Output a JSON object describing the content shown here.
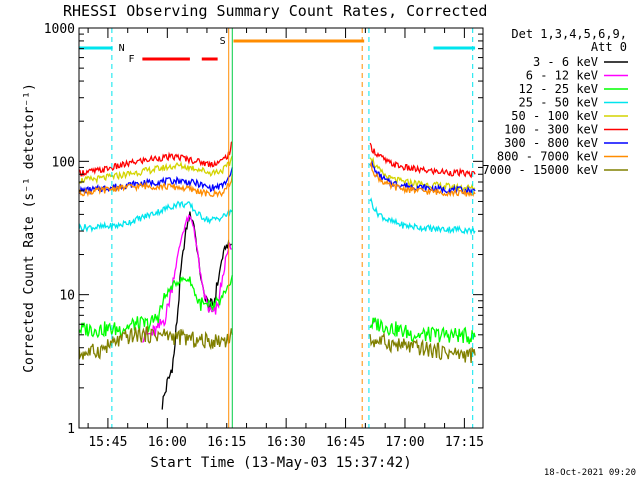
{
  "chart_data": {
    "type": "line",
    "title": "RHESSI Observing Summary Count Rates, Corrected",
    "xlabel": "Start Time (13-May-03 15:37:42)",
    "ylabel": "Corrected Count Rate (s⁻¹ detector⁻¹)",
    "x_unit": "minutes after 15:37:42 UT",
    "xlim": [
      0,
      102
    ],
    "ylim": [
      1,
      1000
    ],
    "y_scale": "log",
    "y_ticks": [
      1,
      10,
      100,
      1000
    ],
    "y_tick_labels": [
      "1",
      "10",
      "100",
      "1000"
    ],
    "x_ticks": [
      7.3,
      22.3,
      37.3,
      52.3,
      67.3,
      82.3,
      97.3
    ],
    "x_tick_labels": [
      "15:45",
      "16:00",
      "16:15",
      "16:30",
      "16:45",
      "17:00",
      "17:15"
    ],
    "legend": {
      "placement": "right",
      "header_line1": "Det 1,3,4,5,6,9,",
      "header_line2": "Att 0"
    },
    "footer_date": "18-Oct-2021 09:20",
    "flags": {
      "N_label": "N",
      "N_color": "#00e5ee",
      "N_segments": [
        [
          0,
          8.5
        ],
        [
          89.5,
          100
        ]
      ],
      "F_label": "F",
      "F_color": "#ff0000",
      "F_segments": [
        [
          16,
          28
        ],
        [
          31,
          35
        ]
      ],
      "S_label": "S",
      "S_color": "#ff8c00",
      "S_segments": [
        [
          39,
          72
        ]
      ]
    },
    "vlines": [
      {
        "x": 8.3,
        "color": "#00e5ee",
        "dashed": true
      },
      {
        "x": 37.8,
        "color": "#ff8c00",
        "dashed": false
      },
      {
        "x": 38.7,
        "color": "#00cc44",
        "dashed": false
      },
      {
        "x": 71.5,
        "color": "#ff8c00",
        "dashed": true
      },
      {
        "x": 73.2,
        "color": "#00e5ee",
        "dashed": true
      },
      {
        "x": 99.4,
        "color": "#00e5ee",
        "dashed": true
      }
    ],
    "series": [
      {
        "name": "3 - 6 keV",
        "color": "#000000",
        "segments": [
          [
            [
              21,
              1.5
            ],
            [
              22,
              2
            ],
            [
              23,
              2.5
            ],
            [
              24,
              3.5
            ],
            [
              25,
              8
            ],
            [
              26,
              18
            ],
            [
              27,
              30
            ],
            [
              28,
              40
            ],
            [
              29,
              34
            ],
            [
              30,
              20
            ],
            [
              31,
              12
            ],
            [
              32,
              9
            ],
            [
              33,
              8
            ],
            [
              34,
              8.5
            ],
            [
              35,
              12
            ],
            [
              36,
              18
            ],
            [
              37,
              23
            ],
            [
              38.5,
              24
            ]
          ]
        ]
      },
      {
        "name": "6 - 12 keV",
        "color": "#ff00ff",
        "segments": [
          [
            [
              16,
              5
            ],
            [
              18,
              5
            ],
            [
              20,
              5.5
            ],
            [
              22,
              7
            ],
            [
              24,
              14
            ],
            [
              26,
              28
            ],
            [
              27,
              35
            ],
            [
              28,
              38
            ],
            [
              29,
              32
            ],
            [
              30,
              20
            ],
            [
              31,
              12
            ],
            [
              32,
              9
            ],
            [
              33,
              7.5
            ],
            [
              34,
              7
            ],
            [
              35,
              8
            ],
            [
              36,
              12
            ],
            [
              37,
              18
            ],
            [
              38,
              23
            ],
            [
              38.6,
              22
            ]
          ],
          [
            [
              74,
              7
            ],
            [
              75,
              6.5
            ]
          ]
        ]
      },
      {
        "name": "12 - 25 keV",
        "color": "#00ff00",
        "segments": [
          [
            [
              0,
              5.5
            ],
            [
              5,
              5.5
            ],
            [
              10,
              5.5
            ],
            [
              14,
              6
            ],
            [
              18,
              6
            ],
            [
              20,
              7
            ],
            [
              22,
              10
            ],
            [
              24,
              12
            ],
            [
              26,
              13
            ],
            [
              28,
              13
            ],
            [
              30,
              9
            ],
            [
              32,
              8
            ],
            [
              34,
              8
            ],
            [
              36,
              9
            ],
            [
              37,
              10
            ],
            [
              38,
              12
            ],
            [
              38.7,
              14
            ]
          ],
          [
            [
              73.5,
              6
            ],
            [
              76,
              6
            ],
            [
              80,
              5.5
            ],
            [
              85,
              5
            ],
            [
              90,
              5
            ],
            [
              95,
              5
            ],
            [
              100,
              4.8
            ]
          ]
        ]
      },
      {
        "name": "25 - 50 keV",
        "color": "#00e5ee",
        "segments": [
          [
            [
              0,
              32
            ],
            [
              5,
              32
            ],
            [
              10,
              33
            ],
            [
              15,
              37
            ],
            [
              20,
              42
            ],
            [
              25,
              48
            ],
            [
              28,
              47
            ],
            [
              30,
              40
            ],
            [
              33,
              36
            ],
            [
              36,
              38
            ],
            [
              38,
              41
            ],
            [
              38.7,
              43
            ]
          ],
          [
            [
              73.5,
              52
            ],
            [
              75,
              42
            ],
            [
              78,
              36
            ],
            [
              82,
              33
            ],
            [
              86,
              32
            ],
            [
              90,
              31
            ],
            [
              95,
              31
            ],
            [
              100,
              30
            ]
          ]
        ]
      },
      {
        "name": "50 - 100 keV",
        "color": "#d4d400",
        "segments": [
          [
            [
              0,
              72
            ],
            [
              5,
              74
            ],
            [
              10,
              78
            ],
            [
              15,
              83
            ],
            [
              20,
              88
            ],
            [
              25,
              93
            ],
            [
              30,
              88
            ],
            [
              33,
              82
            ],
            [
              36,
              85
            ],
            [
              38,
              95
            ],
            [
              38.7,
              110
            ]
          ],
          [
            [
              73.5,
              112
            ],
            [
              75,
              90
            ],
            [
              78,
              75
            ],
            [
              82,
              70
            ],
            [
              86,
              68
            ],
            [
              90,
              66
            ],
            [
              95,
              64
            ],
            [
              100,
              63
            ]
          ]
        ]
      },
      {
        "name": "100 - 300 keV",
        "color": "#ff0000",
        "segments": [
          [
            [
              0,
              82
            ],
            [
              5,
              85
            ],
            [
              10,
              92
            ],
            [
              15,
              100
            ],
            [
              20,
              106
            ],
            [
              25,
              108
            ],
            [
              30,
              100
            ],
            [
              33,
              95
            ],
            [
              36,
              100
            ],
            [
              38,
              115
            ],
            [
              38.7,
              140
            ]
          ],
          [
            [
              73.5,
              130
            ],
            [
              75,
              115
            ],
            [
              78,
              98
            ],
            [
              82,
              90
            ],
            [
              86,
              86
            ],
            [
              90,
              84
            ],
            [
              95,
              82
            ],
            [
              100,
              80
            ]
          ]
        ]
      },
      {
        "name": "300 - 800 keV",
        "color": "#0000ff",
        "segments": [
          [
            [
              0,
              60
            ],
            [
              5,
              62
            ],
            [
              10,
              65
            ],
            [
              15,
              68
            ],
            [
              20,
              70
            ],
            [
              25,
              72
            ],
            [
              30,
              68
            ],
            [
              33,
              63
            ],
            [
              36,
              65
            ],
            [
              38,
              75
            ],
            [
              38.7,
              90
            ]
          ],
          [
            [
              73.5,
              100
            ],
            [
              75,
              82
            ],
            [
              78,
              70
            ],
            [
              82,
              66
            ],
            [
              86,
              64
            ],
            [
              90,
              62
            ],
            [
              95,
              61
            ],
            [
              100,
              60
            ]
          ]
        ]
      },
      {
        "name": "800 - 7000 keV",
        "color": "#ff8c00",
        "segments": [
          [
            [
              0,
              58
            ],
            [
              5,
              60
            ],
            [
              10,
              63
            ],
            [
              15,
              65
            ],
            [
              20,
              65
            ],
            [
              25,
              64
            ],
            [
              30,
              60
            ],
            [
              33,
              56
            ],
            [
              36,
              58
            ],
            [
              38,
              66
            ],
            [
              38.7,
              80
            ]
          ],
          [
            [
              73.5,
              95
            ],
            [
              75,
              78
            ],
            [
              78,
              66
            ],
            [
              82,
              62
            ],
            [
              86,
              60
            ],
            [
              90,
              59
            ],
            [
              95,
              58
            ],
            [
              100,
              57
            ]
          ]
        ]
      },
      {
        "name": "7000 - 15000 keV",
        "color": "#808000",
        "segments": [
          [
            [
              0,
              3.6
            ],
            [
              5,
              3.8
            ],
            [
              10,
              4.5
            ],
            [
              14,
              5
            ],
            [
              18,
              5
            ],
            [
              22,
              5
            ],
            [
              24,
              4.8
            ],
            [
              26,
              4.8
            ],
            [
              30,
              4.5
            ],
            [
              34,
              4.5
            ],
            [
              37,
              4.6
            ],
            [
              38.7,
              5
            ]
          ],
          [
            [
              73.5,
              4.5
            ],
            [
              76,
              4.5
            ],
            [
              80,
              4.2
            ],
            [
              85,
              4
            ],
            [
              90,
              3.8
            ],
            [
              95,
              3.6
            ],
            [
              100,
              3.5
            ]
          ]
        ]
      }
    ]
  }
}
